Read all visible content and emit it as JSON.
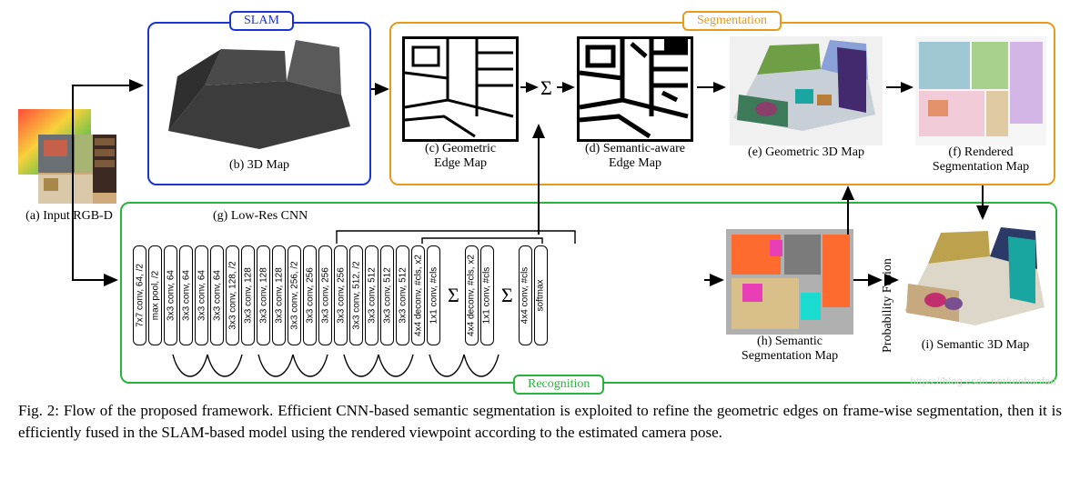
{
  "modules": {
    "slam": {
      "label": "SLAM",
      "border": "#1a34d6"
    },
    "segmentation": {
      "label": "Segmentation",
      "border": "#e79b1a"
    },
    "recognition": {
      "label": "Recognition",
      "border": "#28b43c"
    }
  },
  "panels": {
    "a": {
      "label": "(a) Input RGB-D"
    },
    "b": {
      "label": "(b) 3D Map"
    },
    "c": {
      "label": "(c) Geometric\nEdge Map"
    },
    "d": {
      "label": "(d) Semantic-aware\nEdge Map"
    },
    "e": {
      "label": "(e) Geometric 3D Map"
    },
    "f": {
      "label": "(f) Rendered\nSegmentation Map"
    },
    "g": {
      "label": "(g) Low-Res CNN"
    },
    "h": {
      "label": "(h) Semantic\nSegmentation Map"
    },
    "i": {
      "label": "(i) Semantic 3D Map"
    },
    "pf": {
      "label": "Probability Fusion"
    }
  },
  "sigma": "Σ",
  "palette": {
    "room": {
      "floor": "#cfa97a",
      "sofa": "#d9c9a8",
      "wall_left": "#6a6f73",
      "wall_back_l": "#a7b472",
      "wall_back_r": "#1f2e57",
      "bookshelf": "#3c2a22",
      "picture": "#c7604b",
      "pillow": "#a9864a"
    },
    "seg_e": {
      "bg": "#f0f0f0",
      "sofa": "#3c7a5a",
      "wall1": "#6e9e46",
      "wall2": "#8aa0d8",
      "shelf": "#432a6e",
      "pillow": "#8a3f6a",
      "obj1": "#1aa6a0",
      "obj2": "#b77d39",
      "floor": "#c8cfd6"
    },
    "seg_f": {
      "bg": "#f5f5f5",
      "a": "#f2cbd9",
      "b": "#9fc7d4",
      "c": "#a8d28c",
      "d": "#e0caa1",
      "e": "#d3b6e5",
      "f": "#e2916a"
    },
    "seg_h": {
      "bg": "#b0b0b0",
      "a": "#ff6a2e",
      "b": "#e83fb6",
      "c": "#1adbcf",
      "d": "#d9c08a",
      "e": "#7b7b7b"
    },
    "seg_i": {
      "bg": "#ffffff",
      "wall1": "#2b3a66",
      "wall2": "#bda24e",
      "sofa": "#c6a97e",
      "shelf": "#1aa6a0",
      "pillow1": "#c12f6e",
      "pillow2": "#7a4f8f",
      "floor": "#dcd7c9"
    }
  },
  "edge_map": {
    "bg": "#ffffff",
    "line": "#000000"
  },
  "cnn_layers": [
    "7x7 conv, 64, /2",
    "max pool, /2",
    "3x3 conv, 64",
    "3x3 conv, 64",
    "3x3 conv, 64",
    "3x3 conv, 64",
    "3x3 conv, 128, /2",
    "3x3 conv, 128",
    "3x3 conv, 128",
    "3x3 conv, 128",
    "3x3 conv, 256, /2",
    "3x3 conv, 256",
    "3x3 conv, 256",
    "3x3 conv, 256",
    "3x3 conv, 512, /2",
    "3x3 conv, 512",
    "3x3 conv, 512",
    "3x3 conv, 512",
    "4x4 deconv, #cls, x2",
    "1x1 conv, #cls",
    "",
    "Σ",
    "",
    "4x4 deconv, #cls, x2",
    "1x1 conv, #cls",
    "",
    "Σ",
    "",
    "4x4 conv, #cls",
    "softmax"
  ],
  "caption": "Fig. 2: Flow of the proposed framework. Efficient CNN-based semantic segmentation is exploited to refine the geometric edges on frame-wise segmentation, then it is efficiently fused in the SLAM-based model using the rendered viewpoint according to the estimated camera pose.",
  "watermark": "https://blog.csdn.net/renhaofan"
}
